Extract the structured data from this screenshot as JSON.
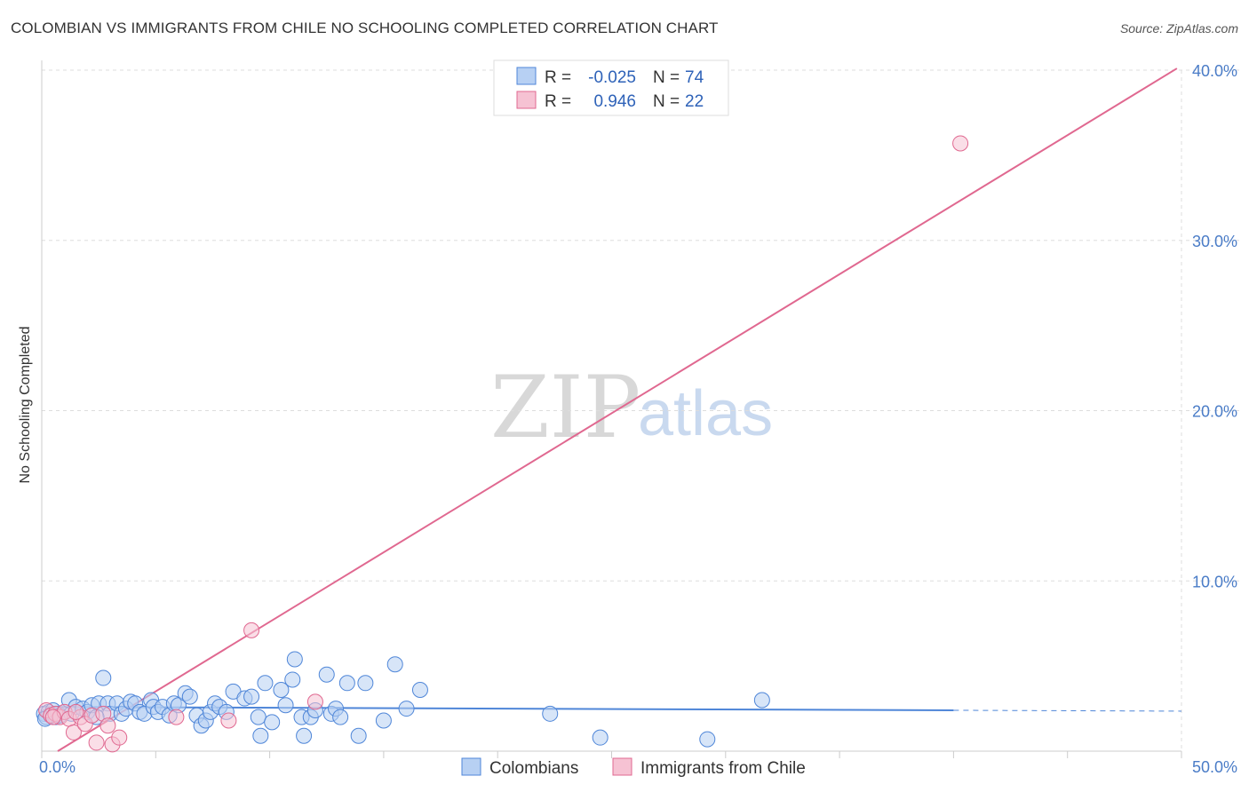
{
  "header": {
    "title": "COLOMBIAN VS IMMIGRANTS FROM CHILE NO SCHOOLING COMPLETED CORRELATION CHART",
    "source": "Source: ZipAtlas.com"
  },
  "watermark": {
    "zip": "ZIP",
    "atlas": "atlas"
  },
  "colors": {
    "blue": "#4f86d8",
    "blue_fill": "#b7d0f3",
    "pink": "#e06890",
    "pink_fill": "#f6c2d3",
    "grid": "#dddddd",
    "tick_text": "#4a7cc7"
  },
  "chart_data": {
    "type": "scatter",
    "title": "COLOMBIAN VS IMMIGRANTS FROM CHILE NO SCHOOLING COMPLETED CORRELATION CHART",
    "xlabel": "",
    "ylabel": "No Schooling Completed",
    "xlim": [
      0,
      50
    ],
    "ylim": [
      0,
      40
    ],
    "x_tick_labels": [
      "0.0%",
      "50.0%"
    ],
    "y_ticks": [
      10,
      20,
      30,
      40
    ],
    "y_tick_labels": [
      "10.0%",
      "20.0%",
      "30.0%",
      "40.0%"
    ],
    "legend_position": "top-center",
    "stats": [
      {
        "r_label": "R =",
        "r": "-0.025",
        "n_label": "N =",
        "n": "74"
      },
      {
        "r_label": "R =",
        "r": "0.946",
        "n_label": "N =",
        "n": "22"
      }
    ],
    "series": [
      {
        "name": "Colombians",
        "color": "#4f86d8",
        "trend": {
          "x0": 0,
          "y0": 2.6,
          "x1": 40,
          "y1": 2.4,
          "dash_to": 50
        },
        "points": [
          [
            0.1,
            2.2
          ],
          [
            0.2,
            2.0
          ],
          [
            0.3,
            2.3
          ],
          [
            0.4,
            2.1
          ],
          [
            0.5,
            2.4
          ],
          [
            0.6,
            2.0
          ],
          [
            0.7,
            2.2
          ],
          [
            0.8,
            2.1
          ],
          [
            1.0,
            2.3
          ],
          [
            1.2,
            3.0
          ],
          [
            1.3,
            2.2
          ],
          [
            1.5,
            2.6
          ],
          [
            1.8,
            2.5
          ],
          [
            2.0,
            2.3
          ],
          [
            2.2,
            2.7
          ],
          [
            2.5,
            2.8
          ],
          [
            2.7,
            4.3
          ],
          [
            2.9,
            2.8
          ],
          [
            3.0,
            2.2
          ],
          [
            3.3,
            2.8
          ],
          [
            3.5,
            2.2
          ],
          [
            3.7,
            2.5
          ],
          [
            3.9,
            2.9
          ],
          [
            4.1,
            2.8
          ],
          [
            4.3,
            2.3
          ],
          [
            4.5,
            2.2
          ],
          [
            4.8,
            3.0
          ],
          [
            4.9,
            2.6
          ],
          [
            5.1,
            2.3
          ],
          [
            5.3,
            2.6
          ],
          [
            5.6,
            2.1
          ],
          [
            5.8,
            2.8
          ],
          [
            6.0,
            2.7
          ],
          [
            6.3,
            3.4
          ],
          [
            6.5,
            3.2
          ],
          [
            6.8,
            2.1
          ],
          [
            7.0,
            1.5
          ],
          [
            7.2,
            1.8
          ],
          [
            7.4,
            2.3
          ],
          [
            7.6,
            2.8
          ],
          [
            7.8,
            2.6
          ],
          [
            8.1,
            2.3
          ],
          [
            8.4,
            3.5
          ],
          [
            8.9,
            3.1
          ],
          [
            9.2,
            3.2
          ],
          [
            9.5,
            2.0
          ],
          [
            9.6,
            0.9
          ],
          [
            9.8,
            4.0
          ],
          [
            10.1,
            1.7
          ],
          [
            10.5,
            3.6
          ],
          [
            10.7,
            2.7
          ],
          [
            11.0,
            4.2
          ],
          [
            11.1,
            5.4
          ],
          [
            11.4,
            2.0
          ],
          [
            11.5,
            0.9
          ],
          [
            11.8,
            2.0
          ],
          [
            12.0,
            2.4
          ],
          [
            12.5,
            4.5
          ],
          [
            12.7,
            2.2
          ],
          [
            12.9,
            2.5
          ],
          [
            13.1,
            2.0
          ],
          [
            13.4,
            4.0
          ],
          [
            13.9,
            0.9
          ],
          [
            14.2,
            4.0
          ],
          [
            15.0,
            1.8
          ],
          [
            15.5,
            5.1
          ],
          [
            16.0,
            2.5
          ],
          [
            16.6,
            3.6
          ],
          [
            22.3,
            2.2
          ],
          [
            24.5,
            0.8
          ],
          [
            29.2,
            0.7
          ],
          [
            31.6,
            3.0
          ],
          [
            0.15,
            1.9
          ],
          [
            2.4,
            2.0
          ]
        ]
      },
      {
        "name": "Immigrants from Chile",
        "color": "#e06890",
        "trend": {
          "x0": 0.7,
          "y0": 0,
          "x1": 49.8,
          "y1": 40.1
        },
        "points": [
          [
            0.2,
            2.4
          ],
          [
            0.4,
            2.1
          ],
          [
            0.6,
            2.2
          ],
          [
            0.8,
            2.0
          ],
          [
            1.0,
            2.3
          ],
          [
            1.2,
            1.9
          ],
          [
            1.4,
            1.1
          ],
          [
            1.7,
            2.0
          ],
          [
            1.9,
            1.6
          ],
          [
            2.2,
            2.1
          ],
          [
            2.4,
            0.5
          ],
          [
            2.7,
            2.2
          ],
          [
            2.9,
            1.5
          ],
          [
            3.1,
            0.4
          ],
          [
            3.4,
            0.8
          ],
          [
            5.9,
            2.0
          ],
          [
            8.2,
            1.8
          ],
          [
            9.2,
            7.1
          ],
          [
            12.0,
            2.9
          ],
          [
            40.3,
            35.7
          ],
          [
            1.5,
            2.3
          ],
          [
            0.5,
            2.0
          ]
        ]
      }
    ]
  },
  "legend": {
    "bottom": [
      "Colombians",
      "Immigrants from Chile"
    ]
  }
}
